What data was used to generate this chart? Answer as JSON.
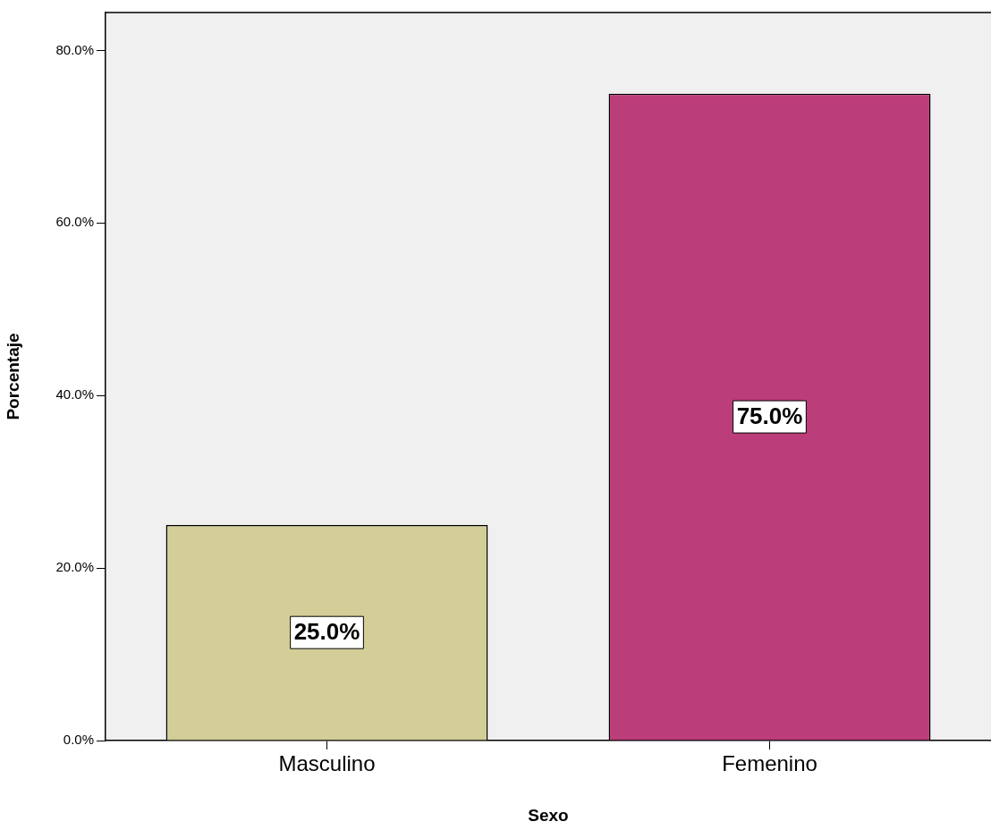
{
  "chart_data": {
    "type": "bar",
    "xlabel": "Sexo",
    "ylabel": "Porcentaje",
    "categories": [
      "Masculino",
      "Femenino"
    ],
    "values": [
      25.0,
      75.0
    ],
    "colors": [
      "#d3ce97",
      "#bb3d7a"
    ],
    "value_labels": [
      "25.0%",
      "75.0%"
    ],
    "ylim": [
      0,
      84.4
    ],
    "yticks": [
      {
        "value": 0,
        "label": "0.0%"
      },
      {
        "value": 20,
        "label": "20.0%"
      },
      {
        "value": 40,
        "label": "40.0%"
      },
      {
        "value": 60,
        "label": "60.0%"
      },
      {
        "value": 80,
        "label": "80.0%"
      }
    ],
    "legend": false
  }
}
